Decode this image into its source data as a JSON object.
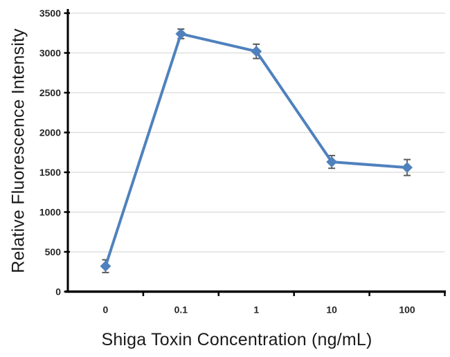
{
  "chart_data": {
    "type": "line",
    "title": "",
    "xlabel": "Shiga Toxin Concentration (ng/mL)",
    "ylabel": "Relative Fluorescence Intensity",
    "categories": [
      "0",
      "0.1",
      "1",
      "10",
      "100"
    ],
    "series": [
      {
        "name": "Relative Fluorescence Intensity",
        "values": [
          320,
          3240,
          3020,
          1630,
          1560
        ],
        "error_bars": [
          80,
          60,
          90,
          80,
          100
        ],
        "color": "#4F81BD",
        "marker": "diamond"
      }
    ],
    "ylim": [
      0,
      3500
    ],
    "y_ticks": [
      0,
      500,
      1000,
      1500,
      2000,
      2500,
      3000,
      3500
    ],
    "grid": "horizontal",
    "legend": "none",
    "colors": {
      "line": "#4F81BD",
      "marker": "#4F81BD",
      "error_bar": "#595959",
      "gridline": "#D9D9D9",
      "axis": "#000000",
      "tick_label": "#262626"
    }
  }
}
